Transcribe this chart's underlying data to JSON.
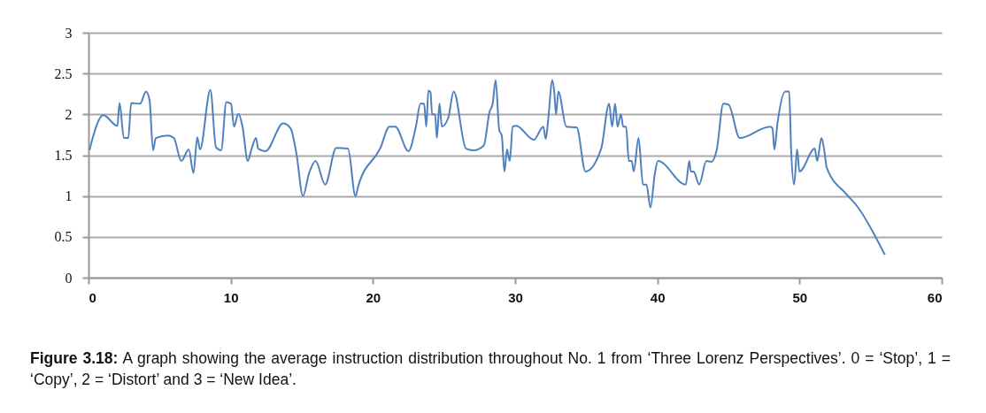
{
  "chart_data": {
    "type": "line",
    "x": [
      0.06,
      1.04,
      2.03,
      2.18,
      2.49,
      2.8,
      3.0,
      3.63,
      4.04,
      4.29,
      4.54,
      4.73,
      5.6,
      6.0,
      6.53,
      7.05,
      7.38,
      7.65,
      7.84,
      8.57,
      8.96,
      9.33,
      9.69,
      10.02,
      10.23,
      10.54,
      10.83,
      11.2,
      11.47,
      11.78,
      11.93,
      12.45,
      13.69,
      14.21,
      14.62,
      15.08,
      15.51,
      15.97,
      16.64,
      17.42,
      18.25,
      18.77,
      18.98,
      20.53,
      21.16,
      21.57,
      22.5,
      23.02,
      23.34,
      23.6,
      23.75,
      23.9,
      24.05,
      24.16,
      24.37,
      24.5,
      24.68,
      24.85,
      25.3,
      25.68,
      26.55,
      27.07,
      27.8,
      28.2,
      28.42,
      28.63,
      28.88,
      29.06,
      29.25,
      29.43,
      29.62,
      29.83,
      30.07,
      31.32,
      31.98,
      32.15,
      32.36,
      32.6,
      32.75,
      32.88,
      33.04,
      33.6,
      34.33,
      34.95,
      36.05,
      36.61,
      36.82,
      37.03,
      37.2,
      37.44,
      37.6,
      37.8,
      38.0,
      38.2,
      38.34,
      38.68,
      38.99,
      39.24,
      39.51,
      39.83,
      40.04,
      42.0,
      42.25,
      42.35,
      42.55,
      42.94,
      43.45,
      43.8,
      44.18,
      44.64,
      45.0,
      45.8,
      47.92,
      48.1,
      48.23,
      48.44,
      49.0,
      49.27,
      49.41,
      49.62,
      49.83,
      49.99,
      51.07,
      51.24,
      51.54,
      51.73,
      51.91,
      53.31,
      54.03,
      56.0
    ],
    "series": [
      {
        "color": "#4f81bd",
        "values": [
          1.56,
          1.99,
          1.86,
          2.14,
          1.71,
          1.71,
          2.14,
          2.13,
          2.28,
          2.18,
          1.56,
          1.71,
          1.74,
          1.71,
          1.43,
          1.57,
          1.28,
          1.72,
          1.57,
          2.3,
          1.6,
          1.56,
          2.15,
          2.13,
          1.85,
          2.01,
          1.85,
          1.43,
          1.58,
          1.71,
          1.58,
          1.55,
          1.89,
          1.83,
          1.52,
          1.0,
          1.28,
          1.43,
          1.14,
          1.59,
          1.58,
          1.0,
          1.13,
          1.59,
          1.85,
          1.85,
          1.55,
          1.85,
          2.13,
          2.13,
          1.85,
          2.29,
          2.27,
          2.0,
          2.0,
          1.71,
          2.13,
          1.85,
          1.96,
          2.28,
          1.58,
          1.56,
          1.62,
          2.03,
          2.13,
          2.42,
          1.81,
          1.74,
          1.3,
          1.57,
          1.43,
          1.85,
          1.86,
          1.69,
          1.85,
          1.7,
          2.0,
          2.42,
          2.28,
          2.0,
          2.28,
          1.85,
          1.84,
          1.3,
          1.58,
          2.13,
          1.85,
          2.13,
          1.85,
          2.0,
          1.85,
          1.85,
          1.43,
          1.43,
          1.3,
          1.71,
          1.14,
          1.14,
          0.86,
          1.28,
          1.43,
          1.14,
          1.43,
          1.3,
          1.3,
          1.14,
          1.43,
          1.42,
          1.57,
          2.13,
          2.12,
          1.71,
          1.85,
          1.83,
          1.57,
          1.88,
          2.28,
          2.28,
          1.56,
          1.14,
          1.57,
          1.3,
          1.58,
          1.43,
          1.71,
          1.57,
          1.35,
          1.02,
          0.88,
          0.28
        ]
      }
    ],
    "xlim": [
      0,
      60
    ],
    "xticks": [
      0,
      10,
      20,
      30,
      40,
      50,
      60
    ],
    "ylim": [
      0,
      3
    ],
    "yticks": [
      0,
      0.5,
      1,
      1.5,
      2,
      2.5,
      3
    ],
    "grid": "y",
    "line_style": "solid",
    "marker": "none",
    "annotations": [
      "Figure 3.18: A graph showing the average instruction distribution throughout No.  1 from ‘Three Lorenz Perspectives’. 0 = ‘Stop’, 1 = ‘Copy’, 2 = ‘Distort’ and 3 = ‘New Idea’."
    ]
  }
}
